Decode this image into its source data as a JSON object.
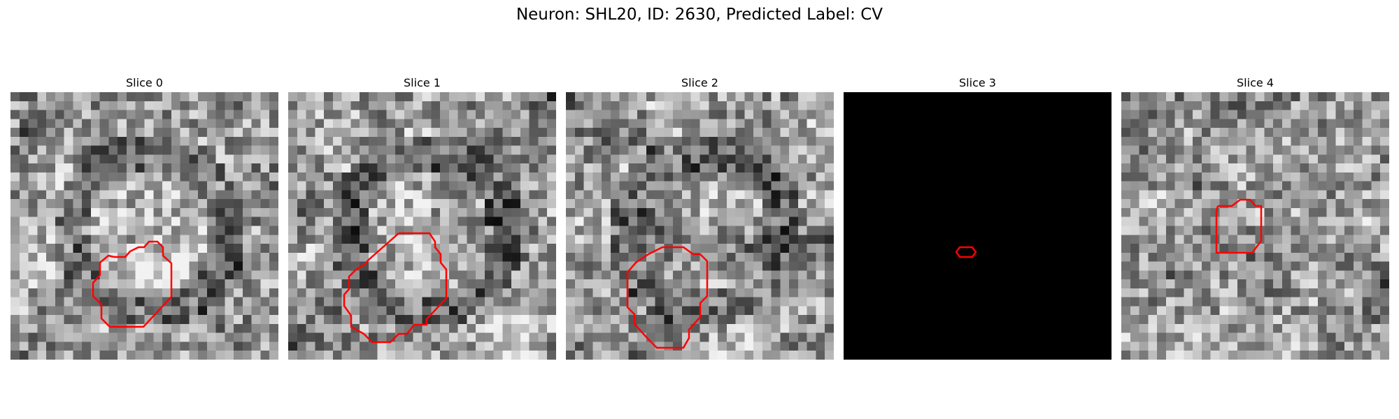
{
  "figure": {
    "title": "Neuron: SHL20, ID: 2630, Predicted Label: CV"
  },
  "contour_color": "#ff0000",
  "panels": [
    {
      "title": "Slice 0",
      "image_style": "grayscale-noise",
      "seed": 11,
      "center_bias": 0.1,
      "ring_dark": true
    },
    {
      "title": "Slice 1",
      "image_style": "grayscale-noise",
      "seed": 23,
      "center_bias": 0.06,
      "ring_dark": true
    },
    {
      "title": "Slice 2",
      "image_style": "grayscale-noise",
      "seed": 37,
      "center_bias": 0.0,
      "ring_dark": true
    },
    {
      "title": "Slice 3",
      "image_style": "black"
    },
    {
      "title": "Slice 4",
      "image_style": "grayscale-noise",
      "seed": 53,
      "center_bias": 0.0,
      "ring_dark": false
    }
  ]
}
